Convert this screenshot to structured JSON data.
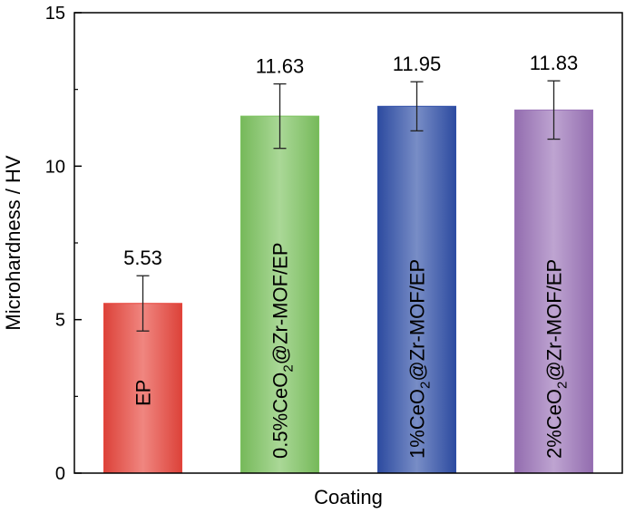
{
  "chart_data": {
    "type": "bar",
    "xlabel": "Coating",
    "ylabel": "Microhardness / HV",
    "ylim": [
      0,
      15
    ],
    "yticks": [
      0,
      5,
      10,
      15
    ],
    "categories": [
      "EP",
      "0.5%CeO2@Zr-MOF/EP",
      "1%CeO2@Zr-MOF/EP",
      "2%CeO2@Zr-MOF/EP"
    ],
    "bar_labels": [
      {
        "main": "EP",
        "sub": "",
        "rest": ""
      },
      {
        "main": "0.5%CeO",
        "sub": "2",
        "rest": "@Zr-MOF/EP"
      },
      {
        "main": "1%CeO",
        "sub": "2",
        "rest": "@Zr-MOF/EP"
      },
      {
        "main": "2%CeO",
        "sub": "2",
        "rest": "@Zr-MOF/EP"
      }
    ],
    "values": [
      5.53,
      11.63,
      11.95,
      11.83
    ],
    "value_labels": [
      "5.53",
      "11.63",
      "11.95",
      "11.83"
    ],
    "errors": [
      0.9,
      1.05,
      0.8,
      0.95
    ],
    "colors": [
      "#e8453c",
      "#7cc35f",
      "#2f4fa8",
      "#9b73b8"
    ],
    "grid": false,
    "legend": "none"
  }
}
